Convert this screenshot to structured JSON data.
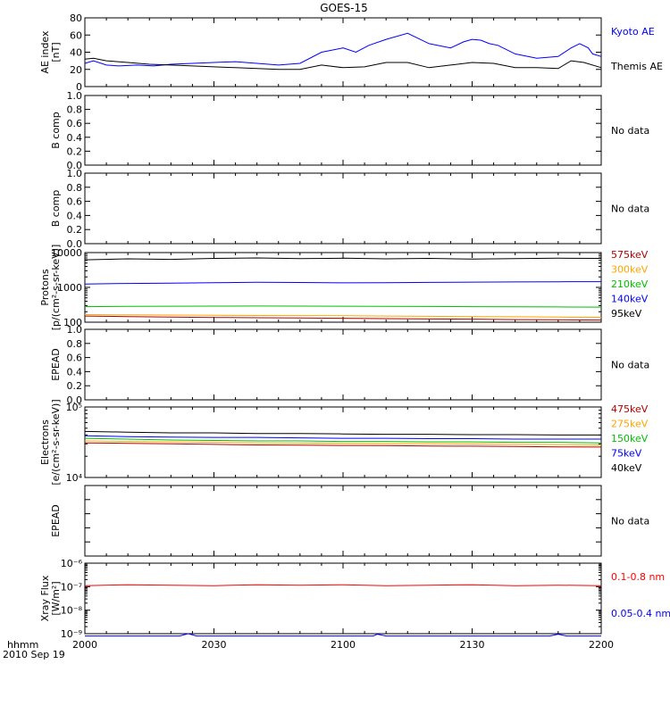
{
  "title": "GOES-15",
  "x_axis": {
    "unit_label": "hhmm",
    "date_label": "2010 Sep 19",
    "ticks": [
      "2000",
      "2030",
      "2100",
      "2130",
      "2200"
    ],
    "range_minutes": [
      0,
      120
    ]
  },
  "chart_data": [
    {
      "type": "line",
      "id": "ae",
      "ylabel": [
        "AE index",
        "[nT]"
      ],
      "ylim": [
        0,
        80
      ],
      "yticks": [
        0,
        20,
        40,
        60,
        80
      ],
      "ytick_labels": [
        "0",
        "20",
        "40",
        "60",
        "80"
      ],
      "legend": [
        {
          "label": "Kyoto AE",
          "color": "#0000ff"
        },
        {
          "label": "Themis AE",
          "color": "#000000"
        }
      ],
      "series": [
        {
          "name": "Kyoto AE",
          "color": "#0000ff",
          "x": [
            0,
            2,
            5,
            8,
            12,
            16,
            20,
            25,
            30,
            35,
            40,
            45,
            50,
            55,
            60,
            63,
            66,
            70,
            75,
            80,
            85,
            88,
            90,
            92,
            94,
            96,
            100,
            105,
            110,
            113,
            115,
            117,
            118,
            120
          ],
          "y": [
            27,
            30,
            25,
            24,
            25,
            24,
            26,
            27,
            28,
            29,
            27,
            25,
            27,
            40,
            45,
            40,
            48,
            55,
            62,
            50,
            45,
            52,
            55,
            54,
            50,
            48,
            38,
            33,
            35,
            45,
            50,
            45,
            38,
            35
          ]
        },
        {
          "name": "Themis AE",
          "color": "#000000",
          "x": [
            0,
            2,
            5,
            10,
            15,
            20,
            25,
            30,
            35,
            40,
            45,
            50,
            55,
            60,
            65,
            70,
            75,
            80,
            85,
            90,
            95,
            100,
            105,
            110,
            113,
            116,
            120
          ],
          "y": [
            32,
            33,
            30,
            28,
            26,
            25,
            24,
            23,
            22,
            21,
            20,
            20,
            25,
            22,
            23,
            28,
            28,
            22,
            25,
            28,
            27,
            22,
            22,
            21,
            30,
            28,
            22
          ]
        }
      ]
    },
    {
      "type": "line",
      "id": "bcomp1",
      "ylabel": [
        "B comp"
      ],
      "ylim": [
        0,
        1
      ],
      "yticks": [
        0,
        0.2,
        0.4,
        0.6,
        0.8,
        1
      ],
      "ytick_labels": [
        "0.0",
        "0.2",
        "0.4",
        "0.6",
        "0.8",
        "1.0"
      ],
      "legend": [
        {
          "label": "No data",
          "color": "#000000"
        }
      ],
      "series": []
    },
    {
      "type": "line",
      "id": "bcomp2",
      "ylabel": [
        "B comp"
      ],
      "ylim": [
        0,
        1
      ],
      "yticks": [
        0,
        0.2,
        0.4,
        0.6,
        0.8,
        1
      ],
      "ytick_labels": [
        "0.0",
        "0.2",
        "0.4",
        "0.6",
        "0.8",
        "1.0"
      ],
      "legend": [
        {
          "label": "No data",
          "color": "#000000"
        }
      ],
      "series": []
    },
    {
      "type": "line",
      "id": "protons",
      "log": true,
      "ylabel": [
        "Protons",
        "[p/(cm²-s-sr-keV)]"
      ],
      "ylim": [
        100,
        10000
      ],
      "yticks": [
        100,
        1000,
        10000
      ],
      "ytick_labels": [
        "100",
        "1000",
        "10000"
      ],
      "legend": [
        {
          "label": "575keV",
          "color": "#b00000"
        },
        {
          "label": "300keV",
          "color": "#ffa500"
        },
        {
          "label": "210keV",
          "color": "#00c000"
        },
        {
          "label": "140keV",
          "color": "#0000ff"
        },
        {
          "label": "95keV",
          "color": "#000000"
        }
      ],
      "series": [
        {
          "name": "95keV",
          "color": "#000000",
          "x": [
            0,
            10,
            20,
            30,
            40,
            50,
            60,
            70,
            80,
            90,
            100,
            110,
            120
          ],
          "y": [
            6200,
            6600,
            6400,
            6800,
            7000,
            6700,
            6900,
            6600,
            6800,
            6500,
            6700,
            6900,
            6800
          ]
        },
        {
          "name": "140keV",
          "color": "#0000ff",
          "x": [
            0,
            10,
            20,
            30,
            40,
            50,
            60,
            70,
            80,
            90,
            100,
            110,
            120
          ],
          "y": [
            1250,
            1300,
            1330,
            1360,
            1400,
            1380,
            1350,
            1370,
            1390,
            1420,
            1430,
            1450,
            1460
          ]
        },
        {
          "name": "210keV",
          "color": "#00c000",
          "x": [
            0,
            10,
            20,
            30,
            40,
            50,
            60,
            70,
            80,
            90,
            100,
            110,
            120
          ],
          "y": [
            280,
            285,
            288,
            290,
            292,
            290,
            288,
            285,
            282,
            280,
            278,
            275,
            272
          ]
        },
        {
          "name": "300keV",
          "color": "#ffa500",
          "x": [
            0,
            10,
            20,
            30,
            40,
            50,
            60,
            70,
            80,
            90,
            100,
            110,
            120
          ],
          "y": [
            165,
            162,
            160,
            158,
            156,
            155,
            153,
            150,
            148,
            145,
            143,
            140,
            138
          ]
        },
        {
          "name": "575keV",
          "color": "#b00000",
          "x": [
            0,
            10,
            20,
            30,
            40,
            50,
            60,
            70,
            80,
            90,
            100,
            110,
            120
          ],
          "y": [
            150,
            145,
            140,
            137,
            134,
            132,
            130,
            127,
            124,
            122,
            119,
            117,
            115
          ]
        }
      ]
    },
    {
      "type": "line",
      "id": "epead1",
      "ylabel": [
        "EPEAD"
      ],
      "ylim": [
        0,
        1
      ],
      "yticks": [
        0,
        0.2,
        0.4,
        0.6,
        0.8,
        1
      ],
      "ytick_labels": [
        "0.0",
        "0.2",
        "0.4",
        "0.6",
        "0.8",
        "1.0"
      ],
      "legend": [
        {
          "label": "No data",
          "color": "#000000"
        }
      ],
      "series": []
    },
    {
      "type": "line",
      "id": "electrons",
      "log": true,
      "ylabel": [
        "Electrons",
        "[e/(cm²-s-sr-keV)]"
      ],
      "ylim": [
        10000,
        100000
      ],
      "yticks": [
        10000,
        100000
      ],
      "ytick_labels": [
        "10⁴",
        "10⁵"
      ],
      "legend": [
        {
          "label": "475keV",
          "color": "#b00000"
        },
        {
          "label": "275keV",
          "color": "#ffa500"
        },
        {
          "label": "150keV",
          "color": "#00c000"
        },
        {
          "label": "75keV",
          "color": "#0000ff"
        },
        {
          "label": "40keV",
          "color": "#000000"
        }
      ],
      "series": [
        {
          "name": "40keV",
          "color": "#000000",
          "x": [
            0,
            10,
            20,
            30,
            40,
            50,
            60,
            70,
            80,
            90,
            100,
            110,
            120
          ],
          "y": [
            45000,
            44000,
            43000,
            43000,
            42000,
            42000,
            41500,
            41000,
            41000,
            40500,
            40500,
            40000,
            40000
          ]
        },
        {
          "name": "75keV",
          "color": "#0000ff",
          "x": [
            0,
            10,
            20,
            30,
            40,
            50,
            60,
            70,
            80,
            90,
            100,
            110,
            120
          ],
          "y": [
            39000,
            38000,
            37500,
            37000,
            37000,
            36500,
            36000,
            36000,
            35500,
            35500,
            35000,
            35000,
            35000
          ]
        },
        {
          "name": "150keV",
          "color": "#00c000",
          "x": [
            0,
            10,
            20,
            30,
            40,
            50,
            60,
            70,
            80,
            90,
            100,
            110,
            120
          ],
          "y": [
            36000,
            35000,
            34000,
            33500,
            33000,
            33000,
            32500,
            32500,
            32000,
            32000,
            31500,
            31500,
            31000
          ]
        },
        {
          "name": "275keV",
          "color": "#ffa500",
          "x": [
            0,
            10,
            20,
            30,
            40,
            50,
            60,
            70,
            80,
            90,
            100,
            110,
            120
          ],
          "y": [
            33000,
            32500,
            32000,
            31500,
            31000,
            30800,
            30500,
            30300,
            30000,
            29800,
            29500,
            29300,
            29000
          ]
        },
        {
          "name": "475keV",
          "color": "#b00000",
          "x": [
            0,
            10,
            20,
            30,
            40,
            50,
            60,
            70,
            80,
            90,
            100,
            110,
            120
          ],
          "y": [
            31000,
            30500,
            30000,
            29500,
            29000,
            28800,
            28500,
            28300,
            28000,
            27800,
            27500,
            27200,
            27000
          ]
        }
      ]
    },
    {
      "type": "line",
      "id": "epead2",
      "ylabel": [
        "EPEAD"
      ],
      "ylim": [
        0,
        1
      ],
      "yticks": [
        0,
        0.2,
        0.4,
        0.6,
        0.8,
        1
      ],
      "ytick_labels": [
        "",
        "",
        "",
        "",
        "",
        ""
      ],
      "legend": [
        {
          "label": "No data",
          "color": "#000000"
        }
      ],
      "series": []
    },
    {
      "type": "line",
      "id": "xray",
      "log": true,
      "ylabel": [
        "Xray Flux",
        "[W/m²]"
      ],
      "ylim": [
        1e-09,
        1e-06
      ],
      "yticks": [
        1e-09,
        1e-08,
        1e-07,
        1e-06
      ],
      "ytick_labels": [
        "10⁻⁹",
        "10⁻⁸",
        "10⁻⁷",
        "10⁻⁶"
      ],
      "legend": [
        {
          "label": "0.1-0.8 nm",
          "color": "#ff0000"
        },
        {
          "label": "0.05-0.4 nm",
          "color": "#0000ff"
        }
      ],
      "series": [
        {
          "name": "0.1-0.8 nm",
          "color": "#ff0000",
          "x": [
            0,
            10,
            20,
            30,
            40,
            50,
            60,
            70,
            80,
            90,
            100,
            110,
            120
          ],
          "y": [
            1.1e-07,
            1.2e-07,
            1.15e-07,
            1.1e-07,
            1.2e-07,
            1.15e-07,
            1.2e-07,
            1.1e-07,
            1.15e-07,
            1.2e-07,
            1.1e-07,
            1.15e-07,
            1.1e-07
          ]
        },
        {
          "name": "0.05-0.4 nm",
          "color": "#0000ff",
          "x": [
            0,
            15,
            22,
            24,
            26,
            30,
            60,
            67,
            68,
            70,
            90,
            108,
            110,
            112,
            120
          ],
          "y": [
            8e-10,
            8e-10,
            8e-10,
            1e-09,
            8e-10,
            8e-10,
            8e-10,
            8e-10,
            9.5e-10,
            8e-10,
            8e-10,
            8e-10,
            9.5e-10,
            8e-10,
            8e-10
          ]
        }
      ]
    }
  ]
}
